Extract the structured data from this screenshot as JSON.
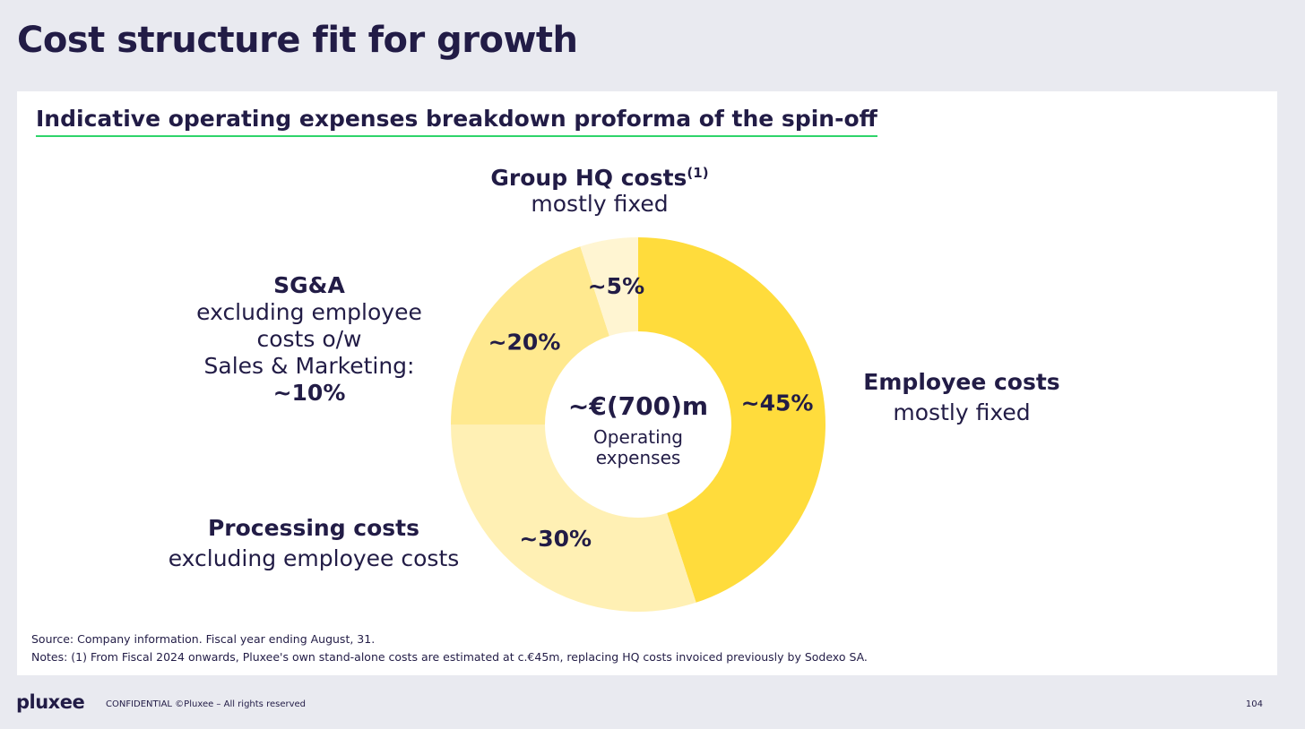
{
  "page": {
    "title": "Cost structure fit for growth",
    "subtitle": "Indicative operating expenses breakdown proforma of the spin-off"
  },
  "chart_data": {
    "type": "pie",
    "donut": true,
    "center_value": "~€(700)m",
    "center_label_line1": "Operating",
    "center_label_line2": "expenses",
    "slices": [
      {
        "key": "employee",
        "value": 45,
        "label": "~45%",
        "color": "#ffdc3c"
      },
      {
        "key": "processing",
        "value": 30,
        "label": "~30%",
        "color": "#fff0b4"
      },
      {
        "key": "sga",
        "value": 20,
        "label": "~20%",
        "color": "#ffe98f"
      },
      {
        "key": "hq",
        "value": 5,
        "label": "~5%",
        "color": "#fff5d2"
      }
    ]
  },
  "callouts": {
    "hq": {
      "title": "Group HQ costs",
      "sup": "(1)",
      "sub": "mostly fixed"
    },
    "sga": {
      "title": "SG&A",
      "line1": "excluding employee",
      "line2": "costs o/w",
      "line3": "Sales & Marketing:",
      "value": "~10%"
    },
    "employee": {
      "title": "Employee costs",
      "sub": "mostly fixed"
    },
    "processing": {
      "title": "Processing costs",
      "sub": "excluding employee costs"
    }
  },
  "footnotes": {
    "source": "Source: Company information. Fiscal year ending August, 31.",
    "notes": "Notes: (1) From Fiscal 2024 onwards, Pluxee's own stand-alone costs are estimated at c.€45m, replacing HQ costs invoiced previously by Sodexo SA."
  },
  "footer": {
    "logo": "pluxee",
    "confidential": "CONFIDENTIAL ©Pluxee – All rights reserved",
    "page_number": "104"
  }
}
